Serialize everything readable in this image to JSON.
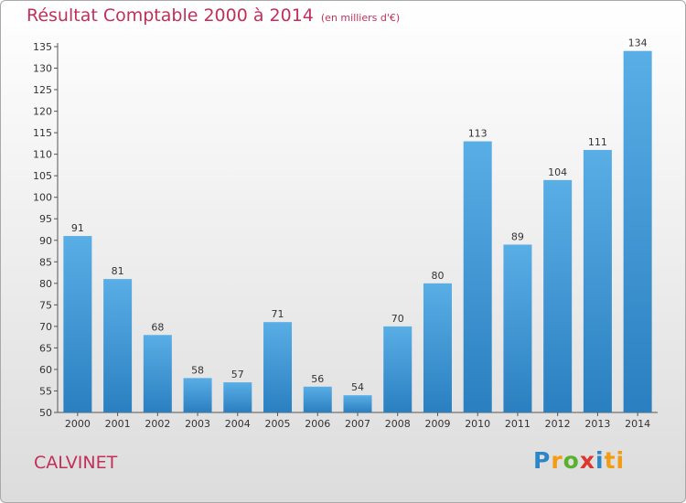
{
  "title": "Résultat Comptable 2000 à 2014",
  "unit": "(en milliers d'€)",
  "commune": "CALVINET",
  "logo": "Proxiti",
  "colors": {
    "title": "#c0305a",
    "bar_light": "#5aaee6",
    "bar_dark": "#2a7fc0"
  },
  "chart_data": {
    "type": "bar",
    "title": "Résultat Comptable 2000 à 2014",
    "xlabel": "",
    "ylabel": "",
    "categories": [
      "2000",
      "2001",
      "2002",
      "2003",
      "2004",
      "2005",
      "2006",
      "2007",
      "2008",
      "2009",
      "2010",
      "2011",
      "2012",
      "2013",
      "2014"
    ],
    "values": [
      91,
      81,
      68,
      58,
      57,
      71,
      56,
      54,
      70,
      80,
      113,
      89,
      104,
      111,
      134
    ],
    "ylim": [
      50,
      135
    ],
    "yticks": [
      50,
      55,
      60,
      65,
      70,
      75,
      80,
      85,
      90,
      95,
      100,
      105,
      110,
      115,
      120,
      125,
      130,
      135
    ],
    "grid": false,
    "legend": "none"
  }
}
